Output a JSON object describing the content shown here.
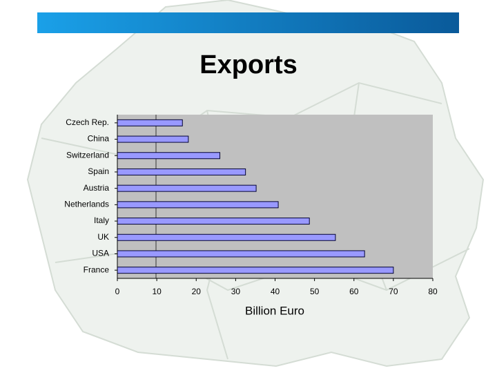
{
  "chart_data": {
    "type": "bar",
    "orientation": "horizontal",
    "title": "Exports",
    "x_label": "Billion Euro",
    "categories": [
      "Czech Rep.",
      "China",
      "Switzerland",
      "Spain",
      "Austria",
      "Netherlands",
      "Italy",
      "UK",
      "USA",
      "France"
    ],
    "values": [
      16.5,
      18,
      26,
      32.5,
      35.2,
      40.8,
      48.7,
      55.3,
      62.7,
      70
    ],
    "color": "#9999ff",
    "xlim": [
      0,
      80
    ],
    "xticks": [
      0,
      10,
      20,
      30,
      40,
      50,
      60,
      70,
      80
    ],
    "grid": false
  }
}
